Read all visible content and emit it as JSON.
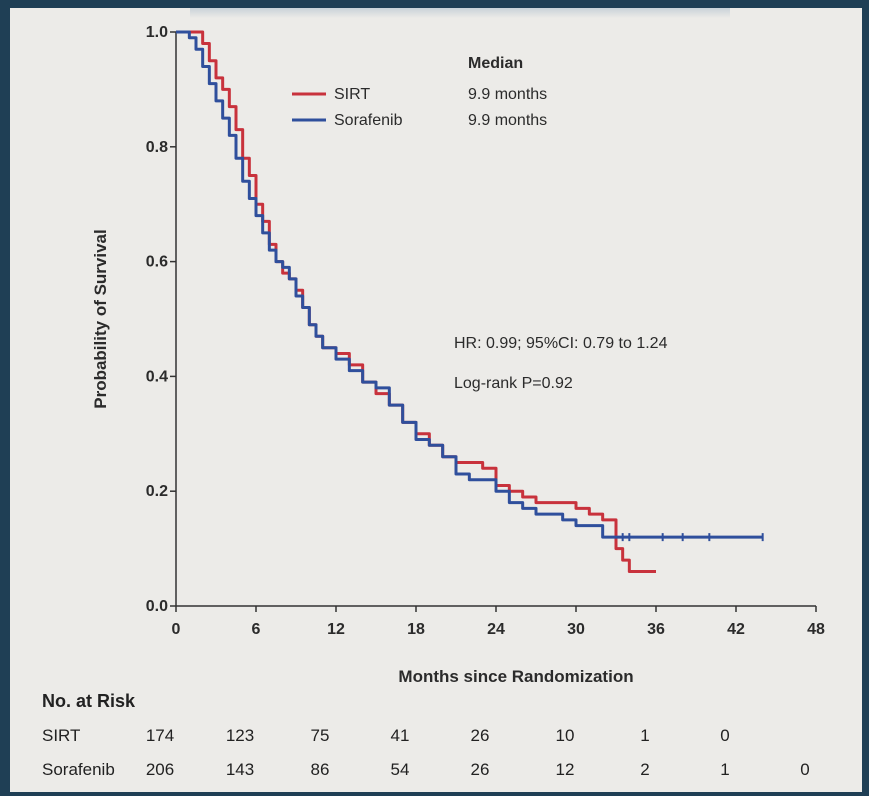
{
  "chart_data": {
    "type": "line",
    "ylabel": "Probability of Survival",
    "xlabel": "Months since Randomization",
    "xlim": [
      0,
      48
    ],
    "ylim": [
      0,
      1.0
    ],
    "xticks": [
      "0",
      "6",
      "12",
      "18",
      "24",
      "30",
      "36",
      "42",
      "48"
    ],
    "yticks": [
      "0.0",
      "0.2",
      "0.4",
      "0.6",
      "0.8",
      "1.0"
    ],
    "legend_header": "Median",
    "series": [
      {
        "name": "SIRT",
        "median": "9.9 months",
        "color": "#c8323c",
        "points": [
          [
            0,
            1.0
          ],
          [
            1.5,
            1.0
          ],
          [
            2,
            0.98
          ],
          [
            2.5,
            0.95
          ],
          [
            3,
            0.92
          ],
          [
            3.5,
            0.9
          ],
          [
            4,
            0.87
          ],
          [
            4.5,
            0.83
          ],
          [
            5,
            0.78
          ],
          [
            5.5,
            0.75
          ],
          [
            6,
            0.7
          ],
          [
            6.5,
            0.67
          ],
          [
            7,
            0.63
          ],
          [
            7.5,
            0.6
          ],
          [
            8,
            0.58
          ],
          [
            8.5,
            0.57
          ],
          [
            9,
            0.55
          ],
          [
            9.5,
            0.52
          ],
          [
            10,
            0.49
          ],
          [
            10.5,
            0.47
          ],
          [
            11,
            0.45
          ],
          [
            12,
            0.44
          ],
          [
            13,
            0.42
          ],
          [
            14,
            0.39
          ],
          [
            15,
            0.37
          ],
          [
            16,
            0.35
          ],
          [
            17,
            0.32
          ],
          [
            18,
            0.3
          ],
          [
            19,
            0.28
          ],
          [
            20,
            0.26
          ],
          [
            21,
            0.25
          ],
          [
            22,
            0.25
          ],
          [
            23,
            0.24
          ],
          [
            24,
            0.21
          ],
          [
            25,
            0.2
          ],
          [
            26,
            0.19
          ],
          [
            27,
            0.18
          ],
          [
            28,
            0.18
          ],
          [
            29,
            0.18
          ],
          [
            30,
            0.17
          ],
          [
            31,
            0.16
          ],
          [
            32,
            0.15
          ],
          [
            33,
            0.1
          ],
          [
            33.5,
            0.08
          ],
          [
            34,
            0.06
          ],
          [
            36,
            0.06
          ]
        ]
      },
      {
        "name": "Sorafenib",
        "median": "9.9 months",
        "color": "#2f4f9c",
        "points": [
          [
            0,
            1.0
          ],
          [
            1,
            0.99
          ],
          [
            1.5,
            0.97
          ],
          [
            2,
            0.94
          ],
          [
            2.5,
            0.91
          ],
          [
            3,
            0.88
          ],
          [
            3.5,
            0.85
          ],
          [
            4,
            0.82
          ],
          [
            4.5,
            0.78
          ],
          [
            5,
            0.74
          ],
          [
            5.5,
            0.71
          ],
          [
            6,
            0.68
          ],
          [
            6.5,
            0.65
          ],
          [
            7,
            0.62
          ],
          [
            7.5,
            0.6
          ],
          [
            8,
            0.59
          ],
          [
            8.5,
            0.57
          ],
          [
            9,
            0.54
          ],
          [
            9.5,
            0.52
          ],
          [
            10,
            0.49
          ],
          [
            10.5,
            0.47
          ],
          [
            11,
            0.45
          ],
          [
            12,
            0.43
          ],
          [
            13,
            0.41
          ],
          [
            14,
            0.39
          ],
          [
            15,
            0.38
          ],
          [
            16,
            0.35
          ],
          [
            17,
            0.32
          ],
          [
            18,
            0.29
          ],
          [
            19,
            0.28
          ],
          [
            20,
            0.26
          ],
          [
            21,
            0.23
          ],
          [
            22,
            0.22
          ],
          [
            23,
            0.22
          ],
          [
            24,
            0.2
          ],
          [
            25,
            0.18
          ],
          [
            26,
            0.17
          ],
          [
            27,
            0.16
          ],
          [
            28,
            0.16
          ],
          [
            29,
            0.15
          ],
          [
            30,
            0.14
          ],
          [
            31,
            0.14
          ],
          [
            32,
            0.12
          ],
          [
            36,
            0.12
          ],
          [
            40,
            0.12
          ],
          [
            44,
            0.12
          ]
        ]
      }
    ],
    "annotations": {
      "hr": "HR: 0.99; 95%CI: 0.79 to 1.24",
      "logrank": "Log-rank P=0.92"
    }
  },
  "risk_table": {
    "title": "No. at Risk",
    "rows": [
      {
        "label": "SIRT",
        "values": [
          "174",
          "123",
          "75",
          "41",
          "26",
          "10",
          "1",
          "0"
        ]
      },
      {
        "label": "Sorafenib",
        "values": [
          "206",
          "143",
          "86",
          "54",
          "26",
          "12",
          "2",
          "1",
          "0"
        ]
      }
    ]
  }
}
